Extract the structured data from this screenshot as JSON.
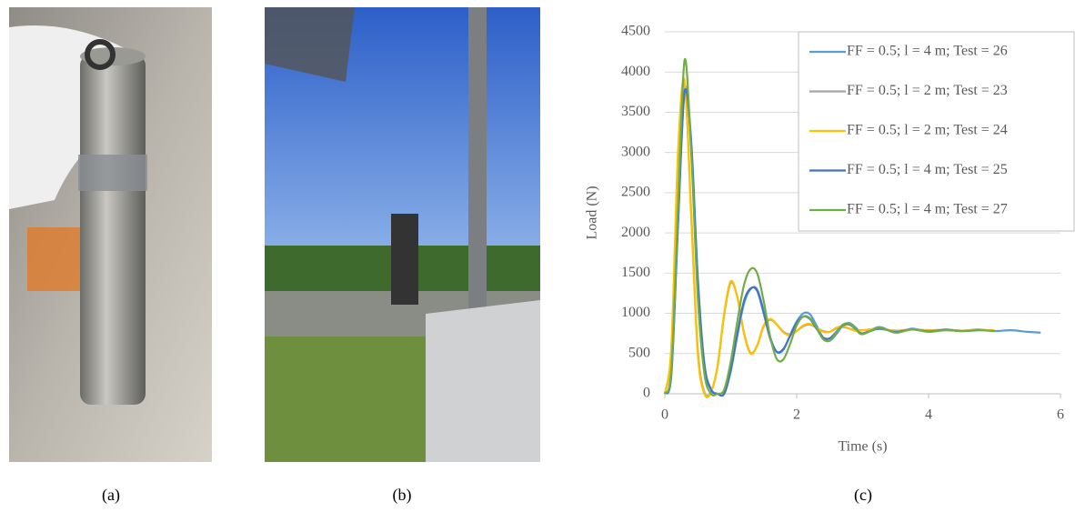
{
  "captions": [
    "(a)",
    "(b)",
    "(c)"
  ],
  "chart_data": {
    "type": "line",
    "x_label": "Time (s)",
    "y_label": "Load (N)",
    "x": [
      0,
      0.1,
      0.2,
      0.3,
      0.4,
      0.5,
      0.6,
      0.7,
      0.8,
      0.9,
      1.0,
      1.1,
      1.2,
      1.3,
      1.4,
      1.5,
      1.6,
      1.7,
      1.8,
      1.9,
      2.0,
      2.1,
      2.2,
      2.3,
      2.4,
      2.5,
      2.6,
      2.7,
      2.8,
      2.9,
      3.0,
      3.25,
      3.5,
      3.75,
      4.0,
      4.25,
      4.5,
      4.75,
      5.0,
      5.25,
      5.5,
      5.7
    ],
    "series": [
      {
        "name": "FF = 0.5; l = 4 m; Test = 26",
        "color": "#5b9bd5",
        "values": [
          0,
          260,
          2150,
          3780,
          3150,
          1450,
          380,
          60,
          0,
          0,
          280,
          720,
          1120,
          1300,
          1300,
          1030,
          700,
          520,
          550,
          730,
          900,
          1000,
          990,
          850,
          700,
          660,
          740,
          850,
          880,
          820,
          750,
          830,
          760,
          810,
          770,
          800,
          780,
          800,
          780,
          790,
          770,
          760
        ]
      },
      {
        "name": "FF = 0.5; l = 2 m; Test = 23",
        "color": "#a5a5a5",
        "values": [
          0,
          550,
          2900,
          3850,
          2250,
          550,
          20,
          30,
          340,
          980,
          1380,
          1200,
          760,
          510,
          600,
          840,
          920,
          860,
          770,
          740,
          780,
          840,
          860,
          820,
          780,
          770,
          810,
          830,
          810,
          790,
          790,
          805,
          785,
          800,
          790,
          795,
          785,
          790,
          null,
          null,
          null,
          null
        ]
      },
      {
        "name": "FF = 0.5; l = 2 m; Test = 24",
        "color": "#ffc000",
        "values": [
          0,
          600,
          3000,
          3900,
          2200,
          500,
          0,
          20,
          350,
          1000,
          1400,
          1200,
          750,
          500,
          600,
          850,
          930,
          860,
          760,
          730,
          780,
          850,
          870,
          820,
          770,
          770,
          820,
          840,
          810,
          780,
          790,
          810,
          780,
          800,
          785,
          795,
          785,
          795,
          790,
          null,
          null,
          null
        ]
      },
      {
        "name": "FF = 0.5; l = 4 m; Test = 25",
        "color": "#4472c4",
        "values": [
          0,
          250,
          2100,
          3750,
          3100,
          1400,
          350,
          50,
          0,
          0,
          300,
          750,
          1150,
          1310,
          1280,
          1000,
          680,
          520,
          560,
          720,
          880,
          960,
          930,
          810,
          700,
          690,
          770,
          850,
          860,
          800,
          750,
          810,
          770,
          800,
          775,
          795,
          780,
          790,
          null,
          null,
          null,
          null
        ]
      },
      {
        "name": "FF = 0.5; l = 4 m; Test = 27",
        "color": "#70ad47",
        "values": [
          0,
          300,
          2300,
          4150,
          3000,
          1200,
          250,
          0,
          0,
          50,
          400,
          900,
          1350,
          1550,
          1500,
          1150,
          700,
          430,
          430,
          620,
          850,
          960,
          940,
          820,
          680,
          660,
          760,
          860,
          870,
          800,
          740,
          820,
          760,
          800,
          770,
          790,
          780,
          790,
          780,
          null,
          null,
          null
        ]
      }
    ],
    "xlim": [
      0,
      6
    ],
    "xticks": [
      0,
      2,
      4,
      6
    ],
    "ylim": [
      0,
      4500
    ],
    "yticks": [
      0,
      500,
      1000,
      1500,
      2000,
      2500,
      3000,
      3500,
      4000,
      4500
    ],
    "grid": true,
    "legend": "top-right"
  }
}
